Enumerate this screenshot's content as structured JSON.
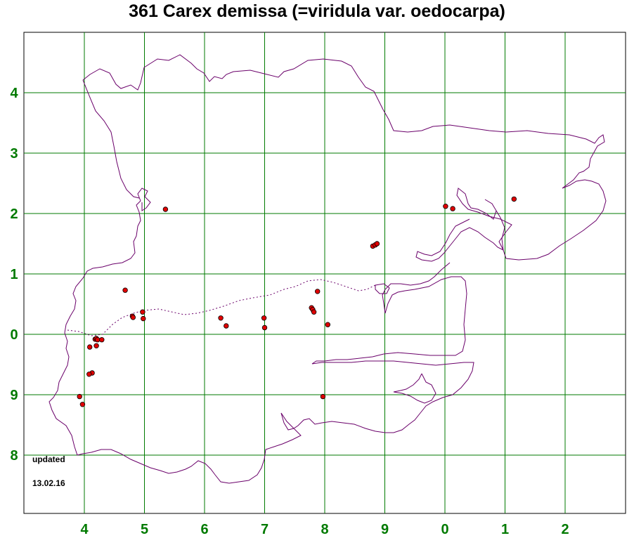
{
  "title": "361 Carex demissa (=viridula var. oedocarpa)",
  "x_ticks": [
    "4",
    "5",
    "6",
    "7",
    "8",
    "9",
    "0",
    "1",
    "2"
  ],
  "y_ticks": [
    "4",
    "3",
    "2",
    "1",
    "0",
    "9",
    "8"
  ],
  "note": {
    "line1": "updated",
    "line2": "13.02.16"
  },
  "colors": {
    "grid": "#007a00",
    "coast": "#6a006a",
    "dot": "#e00000",
    "tick": "#007a00"
  },
  "records": [
    {
      "e": 5.35,
      "n": 2.07
    },
    {
      "e": 4.68,
      "n": 0.73
    },
    {
      "e": 4.8,
      "n": 0.3
    },
    {
      "e": 4.81,
      "n": 0.28
    },
    {
      "e": 4.97,
      "n": 0.37
    },
    {
      "e": 4.98,
      "n": 0.26
    },
    {
      "e": 4.18,
      "n": -0.08
    },
    {
      "e": 4.2,
      "n": -0.07
    },
    {
      "e": 4.22,
      "n": -0.09
    },
    {
      "e": 4.29,
      "n": -0.09
    },
    {
      "e": 4.09,
      "n": -0.21
    },
    {
      "e": 4.2,
      "n": -0.19
    },
    {
      "e": 4.13,
      "n": -0.64
    },
    {
      "e": 4.08,
      "n": -0.66
    },
    {
      "e": 3.92,
      "n": -1.03
    },
    {
      "e": 3.97,
      "n": -1.16
    },
    {
      "e": 6.27,
      "n": 0.27
    },
    {
      "e": 6.36,
      "n": 0.14
    },
    {
      "e": 6.99,
      "n": 0.27
    },
    {
      "e": 7.0,
      "n": 0.11
    },
    {
      "e": 7.78,
      "n": 0.44
    },
    {
      "e": 7.8,
      "n": 0.41
    },
    {
      "e": 7.82,
      "n": 0.37
    },
    {
      "e": 7.88,
      "n": 0.71
    },
    {
      "e": 8.05,
      "n": 0.16
    },
    {
      "e": 7.97,
      "n": -1.03
    },
    {
      "e": 8.8,
      "n": 1.46
    },
    {
      "e": 8.84,
      "n": 1.48
    },
    {
      "e": 8.87,
      "n": 1.5
    },
    {
      "e": 10.01,
      "n": 2.12
    },
    {
      "e": 10.13,
      "n": 2.08
    },
    {
      "e": 11.15,
      "n": 2.24
    }
  ]
}
